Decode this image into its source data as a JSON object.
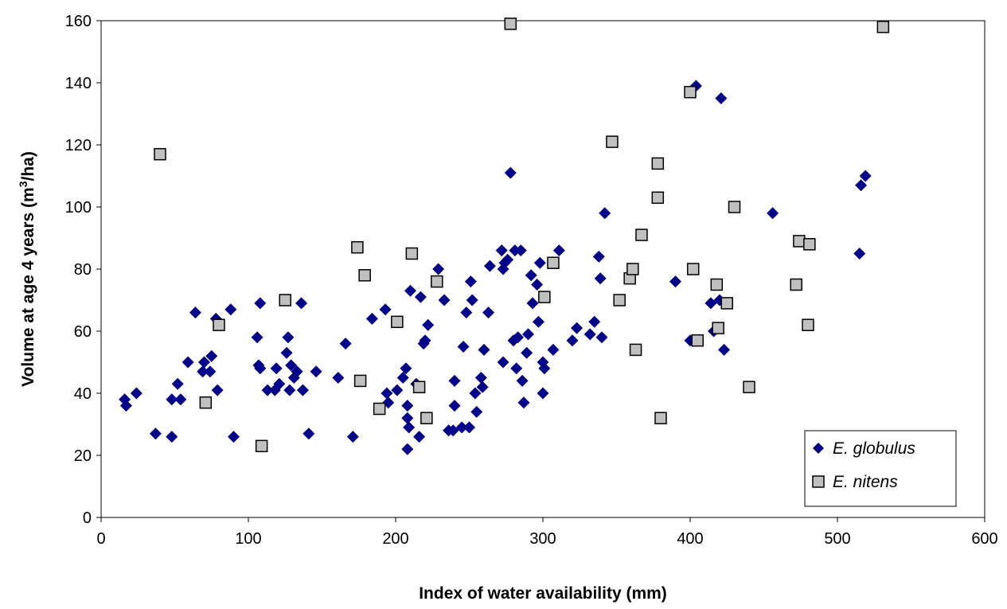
{
  "chart_data": {
    "type": "scatter",
    "xlabel": "Index of water availability (mm)",
    "ylabel_prefix": "Volume at age 4 years (m",
    "ylabel_sup": "3",
    "ylabel_suffix": "/ha)",
    "xlim": [
      0,
      600
    ],
    "ylim": [
      0,
      160
    ],
    "xticks": [
      0,
      100,
      200,
      300,
      400,
      500,
      600
    ],
    "yticks": [
      0,
      20,
      40,
      60,
      80,
      100,
      120,
      140,
      160
    ],
    "grid": false,
    "legend_position": "bottom-right",
    "series": [
      {
        "name": "E. globulus",
        "marker": "diamond",
        "color": "#00008B",
        "points": [
          [
            16,
            38
          ],
          [
            17,
            36
          ],
          [
            24,
            40
          ],
          [
            37,
            27
          ],
          [
            48,
            26
          ],
          [
            48,
            38
          ],
          [
            52,
            43
          ],
          [
            54,
            38
          ],
          [
            59,
            50
          ],
          [
            64,
            66
          ],
          [
            69,
            47
          ],
          [
            70,
            50
          ],
          [
            74,
            47
          ],
          [
            75,
            52
          ],
          [
            78,
            64
          ],
          [
            79,
            41
          ],
          [
            88,
            67
          ],
          [
            90,
            26
          ],
          [
            106,
            58
          ],
          [
            107,
            49
          ],
          [
            108,
            48
          ],
          [
            108,
            69
          ],
          [
            113,
            41
          ],
          [
            118,
            41
          ],
          [
            119,
            48
          ],
          [
            121,
            43
          ],
          [
            126,
            53
          ],
          [
            127,
            58
          ],
          [
            128,
            41
          ],
          [
            129,
            49
          ],
          [
            131,
            45
          ],
          [
            133,
            47
          ],
          [
            136,
            69
          ],
          [
            137,
            41
          ],
          [
            141,
            27
          ],
          [
            146,
            47
          ],
          [
            161,
            45
          ],
          [
            166,
            56
          ],
          [
            171,
            26
          ],
          [
            184,
            64
          ],
          [
            193,
            67
          ],
          [
            194,
            40
          ],
          [
            195,
            37
          ],
          [
            201,
            41
          ],
          [
            205,
            45
          ],
          [
            207,
            48
          ],
          [
            208,
            36
          ],
          [
            208,
            32
          ],
          [
            208,
            22
          ],
          [
            209,
            29
          ],
          [
            210,
            73
          ],
          [
            214,
            43
          ],
          [
            216,
            26
          ],
          [
            217,
            71
          ],
          [
            219,
            56
          ],
          [
            220,
            57
          ],
          [
            222,
            62
          ],
          [
            229,
            80
          ],
          [
            233,
            70
          ],
          [
            236,
            28
          ],
          [
            239,
            28
          ],
          [
            240,
            44
          ],
          [
            240,
            36
          ],
          [
            245,
            29
          ],
          [
            246,
            55
          ],
          [
            248,
            66
          ],
          [
            250,
            29
          ],
          [
            251,
            76
          ],
          [
            252,
            70
          ],
          [
            254,
            40
          ],
          [
            255,
            34
          ],
          [
            258,
            45
          ],
          [
            259,
            42
          ],
          [
            260,
            54
          ],
          [
            263,
            66
          ],
          [
            264,
            81
          ],
          [
            272,
            86
          ],
          [
            273,
            80
          ],
          [
            273,
            50
          ],
          [
            274,
            82
          ],
          [
            276,
            83
          ],
          [
            278,
            111
          ],
          [
            280,
            57
          ],
          [
            281,
            86
          ],
          [
            282,
            48
          ],
          [
            283,
            58
          ],
          [
            285,
            86
          ],
          [
            286,
            44
          ],
          [
            287,
            37
          ],
          [
            289,
            53
          ],
          [
            290,
            59
          ],
          [
            292,
            78
          ],
          [
            293,
            69
          ],
          [
            296,
            75
          ],
          [
            297,
            63
          ],
          [
            298,
            82
          ],
          [
            300,
            50
          ],
          [
            300,
            40
          ],
          [
            301,
            48
          ],
          [
            307,
            54
          ],
          [
            311,
            86
          ],
          [
            320,
            57
          ],
          [
            323,
            61
          ],
          [
            332,
            59
          ],
          [
            335,
            63
          ],
          [
            338,
            84
          ],
          [
            339,
            77
          ],
          [
            340,
            58
          ],
          [
            342,
            98
          ],
          [
            390,
            76
          ],
          [
            400,
            57
          ],
          [
            404,
            139
          ],
          [
            414,
            69
          ],
          [
            416,
            60
          ],
          [
            420,
            70
          ],
          [
            421,
            135
          ],
          [
            423,
            54
          ],
          [
            456,
            98
          ],
          [
            515,
            85
          ],
          [
            516,
            107
          ],
          [
            519,
            110
          ]
        ]
      },
      {
        "name": "E. nitens",
        "marker": "square",
        "color": "#C0C0C0",
        "points": [
          [
            40,
            117
          ],
          [
            71,
            37
          ],
          [
            80,
            62
          ],
          [
            109,
            23
          ],
          [
            125,
            70
          ],
          [
            174,
            87
          ],
          [
            176,
            44
          ],
          [
            179,
            78
          ],
          [
            189,
            35
          ],
          [
            201,
            63
          ],
          [
            211,
            85
          ],
          [
            216,
            42
          ],
          [
            221,
            32
          ],
          [
            228,
            76
          ],
          [
            278,
            159
          ],
          [
            301,
            71
          ],
          [
            307,
            82
          ],
          [
            347,
            121
          ],
          [
            352,
            70
          ],
          [
            359,
            77
          ],
          [
            361,
            80
          ],
          [
            363,
            54
          ],
          [
            367,
            91
          ],
          [
            378,
            114
          ],
          [
            378,
            103
          ],
          [
            380,
            32
          ],
          [
            400,
            137
          ],
          [
            402,
            80
          ],
          [
            405,
            57
          ],
          [
            418,
            75
          ],
          [
            419,
            61
          ],
          [
            425,
            69
          ],
          [
            430,
            100
          ],
          [
            440,
            42
          ],
          [
            472,
            75
          ],
          [
            474,
            89
          ],
          [
            480,
            62
          ],
          [
            481,
            88
          ],
          [
            531,
            158
          ]
        ]
      }
    ]
  }
}
